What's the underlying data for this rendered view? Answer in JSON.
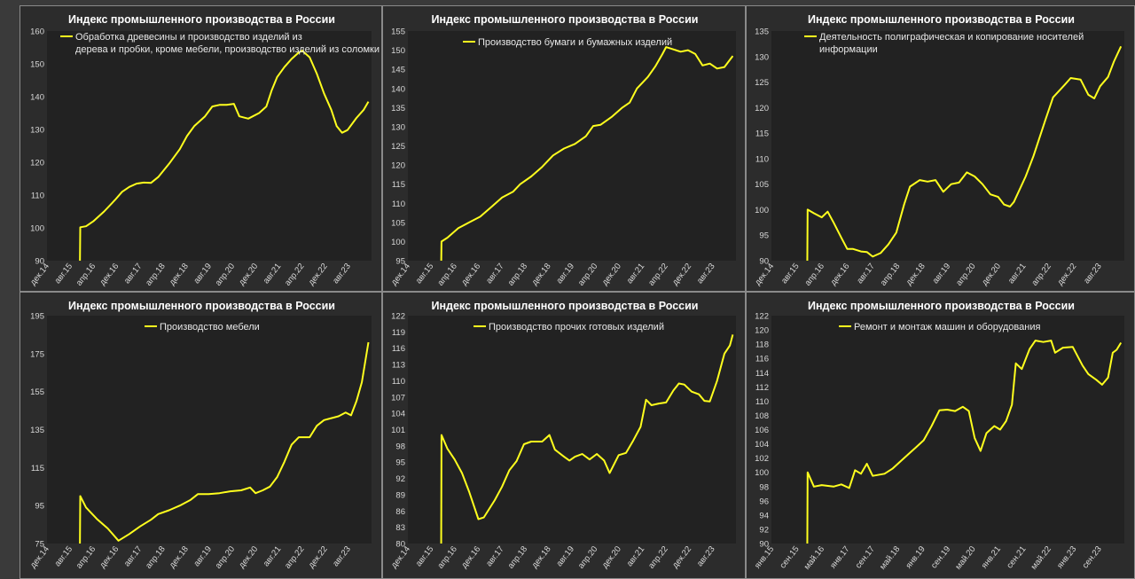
{
  "chart_data": [
    {
      "type": "line",
      "title": "Индекс промышленного производства в России",
      "series": [
        {
          "name": "Обработка древесины и производство изделий из дерева и пробки, кроме мебели, производство изделий из соломки и...",
          "color": "#ffff1e"
        }
      ],
      "ylim": [
        90,
        160
      ],
      "yticks": [
        90,
        100,
        110,
        120,
        130,
        140,
        150,
        160
      ],
      "x_start": 2014.917,
      "x_end": 2023.917,
      "xticks": [
        "дек.14",
        "авг.15",
        "апр.16",
        "дек.16",
        "авг.17",
        "апр.18",
        "дек.18",
        "авг.19",
        "апр.20",
        "дек.20",
        "авг.21",
        "апр.22",
        "дек.22",
        "авг.23"
      ],
      "points": [
        [
          2015.83,
          88
        ],
        [
          2015.84,
          100.2
        ],
        [
          2016.0,
          100.5
        ],
        [
          2016.2,
          102
        ],
        [
          2016.5,
          105
        ],
        [
          2016.8,
          108.5
        ],
        [
          2017.0,
          111
        ],
        [
          2017.2,
          112.5
        ],
        [
          2017.4,
          113.5
        ],
        [
          2017.6,
          113.8
        ],
        [
          2017.8,
          113.7
        ],
        [
          2018.0,
          115.5
        ],
        [
          2018.3,
          119.5
        ],
        [
          2018.6,
          124
        ],
        [
          2018.8,
          128
        ],
        [
          2019.0,
          131
        ],
        [
          2019.3,
          134
        ],
        [
          2019.5,
          137
        ],
        [
          2019.7,
          137.5
        ],
        [
          2019.9,
          137.5
        ],
        [
          2020.1,
          137.8
        ],
        [
          2020.25,
          134
        ],
        [
          2020.5,
          133.3
        ],
        [
          2020.8,
          135
        ],
        [
          2021.0,
          137
        ],
        [
          2021.15,
          142
        ],
        [
          2021.3,
          146
        ],
        [
          2021.5,
          149
        ],
        [
          2021.7,
          151.5
        ],
        [
          2021.9,
          153.5
        ],
        [
          2022.0,
          154
        ],
        [
          2022.2,
          152
        ],
        [
          2022.4,
          147
        ],
        [
          2022.6,
          141
        ],
        [
          2022.8,
          136
        ],
        [
          2022.95,
          131
        ],
        [
          2023.1,
          129
        ],
        [
          2023.25,
          129.8
        ],
        [
          2023.5,
          133.5
        ],
        [
          2023.7,
          136
        ],
        [
          2023.83,
          138.5
        ]
      ]
    },
    {
      "type": "line",
      "title": "Индекс промышленного производства в России",
      "series": [
        {
          "name": "Производство бумаги и бумажных изделий",
          "color": "#ffff1e"
        }
      ],
      "ylim": [
        95,
        155
      ],
      "yticks": [
        95,
        100,
        105,
        110,
        115,
        120,
        125,
        130,
        135,
        140,
        145,
        150,
        155
      ],
      "x_start": 2014.917,
      "x_end": 2023.917,
      "xticks": [
        "дек.14",
        "авг.15",
        "апр.16",
        "дек.16",
        "авг.17",
        "апр.18",
        "дек.18",
        "авг.19",
        "апр.20",
        "дек.20",
        "авг.21",
        "апр.22",
        "дек.22",
        "авг.23"
      ],
      "points": [
        [
          2015.83,
          93
        ],
        [
          2015.84,
          100
        ],
        [
          2016.0,
          101
        ],
        [
          2016.3,
          103.5
        ],
        [
          2016.6,
          105
        ],
        [
          2016.9,
          106.5
        ],
        [
          2017.2,
          109
        ],
        [
          2017.5,
          111.5
        ],
        [
          2017.8,
          113
        ],
        [
          2018.0,
          115
        ],
        [
          2018.3,
          117
        ],
        [
          2018.6,
          119.5
        ],
        [
          2018.9,
          122.5
        ],
        [
          2019.2,
          124.3
        ],
        [
          2019.5,
          125.5
        ],
        [
          2019.8,
          127.5
        ],
        [
          2020.0,
          130.2
        ],
        [
          2020.2,
          130.5
        ],
        [
          2020.5,
          132.5
        ],
        [
          2020.8,
          135
        ],
        [
          2021.0,
          136.3
        ],
        [
          2021.2,
          140
        ],
        [
          2021.5,
          143
        ],
        [
          2021.7,
          145.7
        ],
        [
          2021.9,
          149
        ],
        [
          2022.0,
          150.8
        ],
        [
          2022.2,
          150.2
        ],
        [
          2022.4,
          149.6
        ],
        [
          2022.6,
          150
        ],
        [
          2022.8,
          149
        ],
        [
          2023.0,
          146
        ],
        [
          2023.2,
          146.5
        ],
        [
          2023.4,
          145.2
        ],
        [
          2023.6,
          145.6
        ],
        [
          2023.83,
          148.5
        ]
      ]
    },
    {
      "type": "line",
      "title": "Индекс промышленного производства в России",
      "series": [
        {
          "name": "Деятельность полиграфическая и копирование носителей информации",
          "color": "#ffff1e"
        }
      ],
      "ylim": [
        90,
        135
      ],
      "yticks": [
        90,
        95,
        100,
        105,
        110,
        115,
        120,
        125,
        130,
        135
      ],
      "x_start": 2014.917,
      "x_end": 2023.917,
      "xticks": [
        "дек.14",
        "авг.15",
        "апр.16",
        "дек.16",
        "авг.17",
        "апр.18",
        "дек.18",
        "авг.19",
        "апр.20",
        "дек.20",
        "авг.21",
        "апр.22",
        "дек.22",
        "авг.23"
      ],
      "points": [
        [
          2015.83,
          89
        ],
        [
          2015.84,
          100
        ],
        [
          2016.0,
          99.3
        ],
        [
          2016.2,
          98.5
        ],
        [
          2016.35,
          99.6
        ],
        [
          2016.5,
          97.5
        ],
        [
          2016.7,
          94.5
        ],
        [
          2016.85,
          92.3
        ],
        [
          2017.0,
          92.3
        ],
        [
          2017.2,
          91.8
        ],
        [
          2017.35,
          91.7
        ],
        [
          2017.5,
          90.8
        ],
        [
          2017.7,
          91.5
        ],
        [
          2017.9,
          93.2
        ],
        [
          2018.1,
          95.5
        ],
        [
          2018.3,
          101
        ],
        [
          2018.45,
          104.5
        ],
        [
          2018.7,
          105.8
        ],
        [
          2018.9,
          105.5
        ],
        [
          2019.1,
          105.8
        ],
        [
          2019.3,
          103.5
        ],
        [
          2019.5,
          105
        ],
        [
          2019.7,
          105.3
        ],
        [
          2019.9,
          107.3
        ],
        [
          2020.1,
          106.5
        ],
        [
          2020.3,
          105
        ],
        [
          2020.5,
          103
        ],
        [
          2020.7,
          102.5
        ],
        [
          2020.85,
          101
        ],
        [
          2021.0,
          100.6
        ],
        [
          2021.1,
          101.5
        ],
        [
          2021.4,
          106.5
        ],
        [
          2021.6,
          110.5
        ],
        [
          2021.9,
          117.5
        ],
        [
          2022.1,
          122
        ],
        [
          2022.4,
          124.5
        ],
        [
          2022.55,
          125.8
        ],
        [
          2022.8,
          125.5
        ],
        [
          2023.0,
          122.5
        ],
        [
          2023.15,
          121.8
        ],
        [
          2023.3,
          124.2
        ],
        [
          2023.5,
          126
        ],
        [
          2023.65,
          129
        ],
        [
          2023.83,
          132
        ]
      ]
    },
    {
      "type": "line",
      "title": "Индекс промышленного производства в России",
      "series": [
        {
          "name": "Производство мебели",
          "color": "#ffff1e"
        }
      ],
      "ylim": [
        75,
        195
      ],
      "yticks": [
        75,
        95,
        115,
        135,
        155,
        175,
        195
      ],
      "x_start": 2014.917,
      "x_end": 2023.917,
      "xticks": [
        "дек.14",
        "авг.15",
        "апр.16",
        "дек.16",
        "авг.17",
        "апр.18",
        "дек.18",
        "авг.19",
        "апр.20",
        "дек.20",
        "авг.21",
        "апр.22",
        "дек.22",
        "авг.23"
      ],
      "points": [
        [
          2015.83,
          72
        ],
        [
          2015.84,
          100
        ],
        [
          2016.0,
          94
        ],
        [
          2016.3,
          88
        ],
        [
          2016.6,
          83
        ],
        [
          2016.9,
          76.5
        ],
        [
          2017.2,
          80
        ],
        [
          2017.5,
          84
        ],
        [
          2017.8,
          87.5
        ],
        [
          2018.0,
          90.5
        ],
        [
          2018.3,
          92.5
        ],
        [
          2018.6,
          95
        ],
        [
          2018.9,
          98
        ],
        [
          2019.1,
          101
        ],
        [
          2019.4,
          101
        ],
        [
          2019.7,
          101.5
        ],
        [
          2020.0,
          102.5
        ],
        [
          2020.3,
          103
        ],
        [
          2020.55,
          104.5
        ],
        [
          2020.7,
          101.5
        ],
        [
          2020.9,
          103
        ],
        [
          2021.1,
          105
        ],
        [
          2021.3,
          110
        ],
        [
          2021.5,
          118
        ],
        [
          2021.7,
          127
        ],
        [
          2021.9,
          131
        ],
        [
          2022.2,
          131
        ],
        [
          2022.4,
          137
        ],
        [
          2022.6,
          140
        ],
        [
          2022.8,
          141
        ],
        [
          2023.0,
          142
        ],
        [
          2023.2,
          144
        ],
        [
          2023.35,
          142.5
        ],
        [
          2023.5,
          150
        ],
        [
          2023.65,
          160
        ],
        [
          2023.83,
          181
        ]
      ]
    },
    {
      "type": "line",
      "title": "Индекс промышленного производства в России",
      "series": [
        {
          "name": "Производство прочих готовых изделий",
          "color": "#ffff1e"
        }
      ],
      "ylim": [
        80,
        122
      ],
      "yticks": [
        80,
        83,
        86,
        89,
        92,
        95,
        98,
        101,
        104,
        107,
        110,
        113,
        116,
        119,
        122
      ],
      "x_start": 2014.917,
      "x_end": 2023.917,
      "xticks": [
        "дек.14",
        "авг.15",
        "апр.16",
        "дек.16",
        "авг.17",
        "апр.18",
        "дек.18",
        "авг.19",
        "апр.20",
        "дек.20",
        "авг.21",
        "апр.22",
        "дек.22",
        "авг.23"
      ],
      "points": [
        [
          2015.83,
          78
        ],
        [
          2015.84,
          100
        ],
        [
          2016.0,
          97.5
        ],
        [
          2016.2,
          95.5
        ],
        [
          2016.4,
          93
        ],
        [
          2016.6,
          89.5
        ],
        [
          2016.85,
          84.5
        ],
        [
          2017.0,
          84.8
        ],
        [
          2017.3,
          88
        ],
        [
          2017.5,
          90.5
        ],
        [
          2017.7,
          93.5
        ],
        [
          2017.9,
          95.2
        ],
        [
          2018.1,
          98.3
        ],
        [
          2018.3,
          98.8
        ],
        [
          2018.6,
          98.8
        ],
        [
          2018.8,
          100
        ],
        [
          2018.95,
          97.3
        ],
        [
          2019.2,
          96
        ],
        [
          2019.35,
          95.3
        ],
        [
          2019.5,
          96
        ],
        [
          2019.7,
          96.5
        ],
        [
          2019.9,
          95.5
        ],
        [
          2020.1,
          96.5
        ],
        [
          2020.3,
          95.3
        ],
        [
          2020.45,
          93
        ],
        [
          2020.7,
          96.3
        ],
        [
          2020.9,
          96.7
        ],
        [
          2021.1,
          99
        ],
        [
          2021.3,
          101.5
        ],
        [
          2021.45,
          106.5
        ],
        [
          2021.6,
          105.5
        ],
        [
          2021.8,
          105.8
        ],
        [
          2022.0,
          106
        ],
        [
          2022.2,
          108.2
        ],
        [
          2022.35,
          109.5
        ],
        [
          2022.5,
          109.3
        ],
        [
          2022.7,
          108
        ],
        [
          2022.9,
          107.5
        ],
        [
          2023.05,
          106.3
        ],
        [
          2023.2,
          106.2
        ],
        [
          2023.4,
          110
        ],
        [
          2023.6,
          115
        ],
        [
          2023.75,
          116.5
        ],
        [
          2023.83,
          118.5
        ]
      ]
    },
    {
      "type": "line",
      "title": "Индекс промышленного производства в России",
      "series": [
        {
          "name": "Ремонт и монтаж машин и оборудования",
          "color": "#ffff1e"
        }
      ],
      "ylim": [
        90,
        122
      ],
      "yticks": [
        90,
        92,
        94,
        96,
        98,
        100,
        102,
        104,
        106,
        108,
        110,
        112,
        114,
        116,
        118,
        120,
        122
      ],
      "x_start": 2014.917,
      "x_end": 2023.917,
      "xticks": [
        "янв.15",
        "сен.15",
        "май.16",
        "янв.17",
        "сен.17",
        "май.18",
        "янв.19",
        "сен.19",
        "май.20",
        "янв.21",
        "сен.21",
        "май.22",
        "янв.23",
        "сен.23"
      ],
      "points": [
        [
          2015.83,
          89
        ],
        [
          2015.84,
          100
        ],
        [
          2016.0,
          98
        ],
        [
          2016.2,
          98.2
        ],
        [
          2016.5,
          98
        ],
        [
          2016.7,
          98.3
        ],
        [
          2016.9,
          97.8
        ],
        [
          2017.05,
          100.3
        ],
        [
          2017.2,
          99.8
        ],
        [
          2017.35,
          101.2
        ],
        [
          2017.5,
          99.5
        ],
        [
          2017.8,
          99.8
        ],
        [
          2018.0,
          100.5
        ],
        [
          2018.2,
          101.5
        ],
        [
          2018.4,
          102.5
        ],
        [
          2018.6,
          103.5
        ],
        [
          2018.8,
          104.5
        ],
        [
          2019.0,
          106.5
        ],
        [
          2019.2,
          108.7
        ],
        [
          2019.4,
          108.8
        ],
        [
          2019.6,
          108.6
        ],
        [
          2019.8,
          109.2
        ],
        [
          2019.95,
          108.6
        ],
        [
          2020.1,
          104.8
        ],
        [
          2020.25,
          103
        ],
        [
          2020.4,
          105.5
        ],
        [
          2020.6,
          106.5
        ],
        [
          2020.75,
          106
        ],
        [
          2020.9,
          107.2
        ],
        [
          2021.05,
          109.5
        ],
        [
          2021.15,
          115.3
        ],
        [
          2021.3,
          114.5
        ],
        [
          2021.5,
          117.3
        ],
        [
          2021.65,
          118.5
        ],
        [
          2021.85,
          118.3
        ],
        [
          2022.05,
          118.5
        ],
        [
          2022.15,
          116.8
        ],
        [
          2022.35,
          117.5
        ],
        [
          2022.6,
          117.6
        ],
        [
          2022.85,
          115
        ],
        [
          2023.0,
          113.8
        ],
        [
          2023.2,
          113
        ],
        [
          2023.35,
          112.3
        ],
        [
          2023.5,
          113.3
        ],
        [
          2023.62,
          116.8
        ],
        [
          2023.72,
          117.2
        ],
        [
          2023.83,
          118.2
        ]
      ]
    }
  ]
}
